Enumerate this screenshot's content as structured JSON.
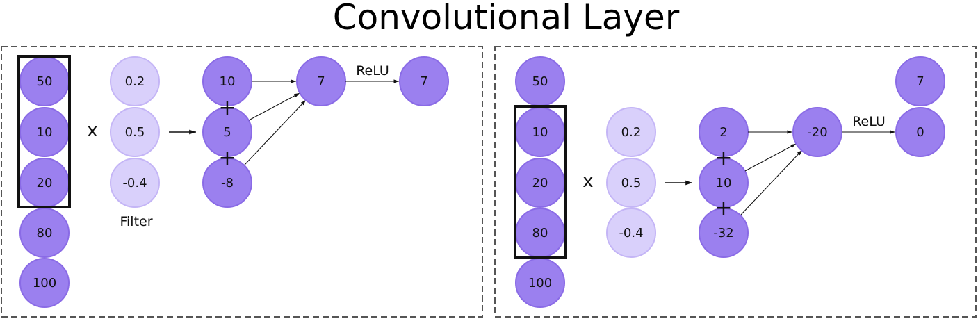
{
  "title": "Convolutional Layer",
  "filter_label": "Filter",
  "times_symbol": "x",
  "plus_symbol": "+",
  "activation_label": "ReLU",
  "colors": {
    "input_node": "#9b80ef",
    "filter_node": "#d9d0fb",
    "panel_border": "#555555"
  },
  "panels": [
    {
      "inputs": [
        "50",
        "10",
        "20",
        "80",
        "100"
      ],
      "window_start": 0,
      "filter": [
        "0.2",
        "0.5",
        "-0.4"
      ],
      "products": [
        "10",
        "5",
        "-8"
      ],
      "sum": "7",
      "output": "7"
    },
    {
      "inputs": [
        "50",
        "10",
        "20",
        "80",
        "100"
      ],
      "window_start": 1,
      "filter": [
        "0.2",
        "0.5",
        "-0.4"
      ],
      "products": [
        "2",
        "10",
        "-32"
      ],
      "sum": "-20",
      "previous_output": "7",
      "output": "0"
    }
  ]
}
